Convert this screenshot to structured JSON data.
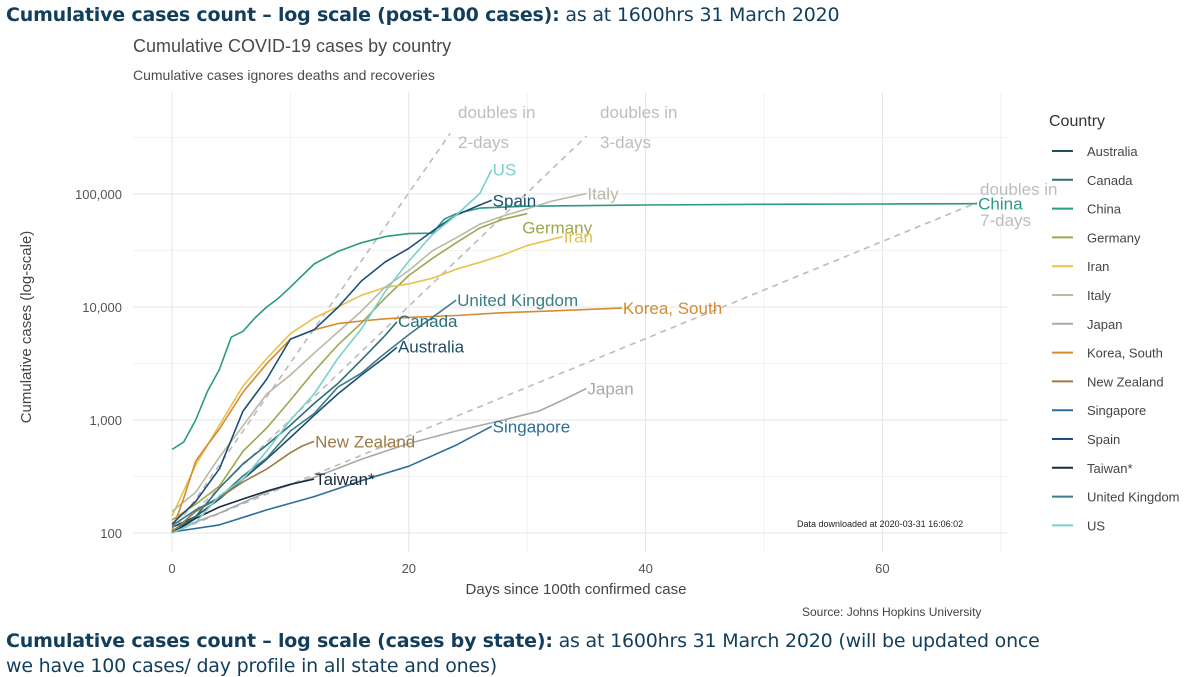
{
  "headings": {
    "top": {
      "bold": "Cumulative cases count – log scale (post-100 cases):",
      "rest": " as at 1600hrs 31 March 2020"
    },
    "bottom": {
      "bold": "Cumulative cases count – log scale (cases by state):",
      "rest": " as at 1600hrs 31 March 2020 (will be updated once"
    },
    "bottom_line2": "we have 100 cases/ day profile in all state and ones)"
  },
  "chart_data": {
    "type": "line",
    "title": "Cumulative COVID-19 cases by country",
    "subtitle": "Cumulative cases ignores deaths and recoveries",
    "xlabel": "Days since 100th confirmed case",
    "ylabel": "Cumulative cases (log-scale)",
    "xlim": [
      -1,
      71
    ],
    "ylim": [
      80,
      400000
    ],
    "yscale": "log",
    "x_ticks": [
      0,
      20,
      40,
      60
    ],
    "x_tick_labels": [
      "0",
      "20",
      "40",
      "60"
    ],
    "y_ticks": [
      100,
      1000,
      10000,
      100000
    ],
    "y_tick_labels": [
      "100",
      "1,000",
      "10,000",
      "100,000"
    ],
    "grid": true,
    "legend": {
      "title": "Country",
      "position": "right"
    },
    "note": "Data downloaded at 2020-03-31 16:06:02",
    "source": "Source: Johns Hopkins University",
    "reference_lines": [
      {
        "name": "doubles in 2-days",
        "label_line1": "doubles in",
        "label_line2": "2-days",
        "doubling_days": 2,
        "x_end": 24
      },
      {
        "name": "doubles in 3-days",
        "label_line1": "doubles in",
        "label_line2": "3-days",
        "doubling_days": 3,
        "x_end": 36
      },
      {
        "name": "doubles in 7-days",
        "label_line1": "doubles in",
        "label_line2": "7-days",
        "doubling_days": 7,
        "x_end": 68
      }
    ],
    "series": [
      {
        "name": "Australia",
        "color": "#1f4e6b",
        "label": "Australia",
        "x": [
          0,
          2,
          4,
          6,
          8,
          10,
          12,
          14,
          16,
          18,
          19
        ],
        "y": [
          112,
          140,
          200,
          300,
          450,
          700,
          1100,
          1700,
          2500,
          3600,
          4400
        ]
      },
      {
        "name": "Canada",
        "color": "#2a6f78",
        "label": "Canada",
        "x": [
          0,
          2,
          4,
          6,
          8,
          10,
          12,
          14,
          16,
          18,
          19
        ],
        "y": [
          103,
          140,
          250,
          410,
          600,
          900,
          1400,
          2100,
          3400,
          5600,
          7400
        ]
      },
      {
        "name": "China",
        "color": "#2a9a82",
        "label": "China",
        "x": [
          0,
          1,
          2,
          3,
          4,
          5,
          6,
          7,
          8,
          9,
          10,
          12,
          14,
          16,
          18,
          20,
          22,
          23,
          24,
          26,
          30,
          40,
          50,
          60,
          68
        ],
        "y": [
          548,
          640,
          1000,
          1800,
          2800,
          5400,
          6100,
          8000,
          10000,
          12000,
          15000,
          24000,
          31000,
          37000,
          42000,
          44600,
          45000,
          60000,
          67000,
          75000,
          78000,
          80000,
          81000,
          81500,
          82000
        ]
      },
      {
        "name": "Germany",
        "color": "#9aa84e",
        "label": "Germany",
        "x": [
          0,
          2,
          4,
          6,
          8,
          10,
          12,
          14,
          16,
          18,
          20,
          22,
          24,
          26,
          28,
          30
        ],
        "y": [
          130,
          180,
          260,
          530,
          850,
          1500,
          2700,
          4600,
          7200,
          12000,
          19000,
          27000,
          37000,
          50000,
          60000,
          67000
        ]
      },
      {
        "name": "Iran",
        "color": "#e8c14a",
        "label": "Iran",
        "x": [
          0,
          2,
          4,
          6,
          8,
          10,
          12,
          14,
          16,
          18,
          20,
          22,
          24,
          26,
          28,
          30,
          33
        ],
        "y": [
          141,
          400,
          900,
          2000,
          3500,
          5800,
          8000,
          10000,
          12700,
          14900,
          16000,
          18000,
          21600,
          24800,
          29000,
          35000,
          42000
        ]
      },
      {
        "name": "Italy",
        "color": "#b9b9a8",
        "label": "Italy",
        "x": [
          0,
          2,
          4,
          6,
          8,
          10,
          12,
          14,
          16,
          18,
          20,
          22,
          24,
          26,
          28,
          30,
          32,
          35
        ],
        "y": [
          155,
          229,
          470,
          890,
          1700,
          2500,
          3900,
          6000,
          9200,
          15000,
          21000,
          31500,
          41000,
          54000,
          64000,
          74000,
          86000,
          101000
        ]
      },
      {
        "name": "Japan",
        "color": "#a9a9a9",
        "label": "Japan",
        "x": [
          0,
          4,
          8,
          12,
          16,
          20,
          24,
          28,
          31,
          33,
          35
        ],
        "y": [
          105,
          150,
          230,
          310,
          450,
          620,
          800,
          1000,
          1200,
          1500,
          1900
        ]
      },
      {
        "name": "Korea, South",
        "color": "#d68a32",
        "label": "Korea, South",
        "x": [
          0,
          1,
          2,
          3,
          4,
          6,
          8,
          10,
          12,
          14,
          16,
          18,
          20,
          24,
          28,
          32,
          38
        ],
        "y": [
          104,
          204,
          433,
          602,
          833,
          1766,
          3150,
          5186,
          6284,
          7134,
          7513,
          7869,
          8086,
          8413,
          8897,
          9241,
          9786
        ]
      },
      {
        "name": "New Zealand",
        "color": "#9c7b45",
        "label": "New Zealand",
        "x": [
          0,
          2,
          4,
          6,
          8,
          10,
          11,
          12
        ],
        "y": [
          102,
          155,
          205,
          283,
          368,
          514,
          589,
          647
        ]
      },
      {
        "name": "Singapore",
        "color": "#2a6f9a",
        "label": "Singapore",
        "x": [
          0,
          4,
          8,
          12,
          16,
          20,
          24,
          27
        ],
        "y": [
          102,
          118,
          160,
          210,
          290,
          390,
          600,
          880
        ]
      },
      {
        "name": "Spain",
        "color": "#1d4f7a",
        "label": "Spain",
        "x": [
          0,
          2,
          4,
          6,
          8,
          10,
          12,
          14,
          16,
          18,
          20,
          22,
          24,
          26,
          27
        ],
        "y": [
          120,
          190,
          370,
          1200,
          2300,
          5200,
          6300,
          9900,
          17000,
          25000,
          33000,
          47000,
          65000,
          80000,
          88000
        ]
      },
      {
        "name": "Taiwan*",
        "color": "#1a2b3c",
        "label": "Taiwan*",
        "x": [
          0,
          2,
          4,
          6,
          8,
          10,
          12
        ],
        "y": [
          100,
          135,
          170,
          200,
          235,
          270,
          300
        ]
      },
      {
        "name": "United Kingdom",
        "color": "#3a7d8a",
        "label": "United Kingdom",
        "x": [
          0,
          2,
          4,
          6,
          8,
          10,
          12,
          14,
          16,
          18,
          20,
          22,
          24
        ],
        "y": [
          116,
          160,
          206,
          320,
          460,
          800,
          1140,
          1950,
          2600,
          3900,
          5700,
          8100,
          11500
        ]
      },
      {
        "name": "US",
        "color": "#7ad0cc",
        "label": "US",
        "x": [
          0,
          2,
          4,
          6,
          8,
          10,
          12,
          14,
          16,
          18,
          20,
          22,
          24,
          26,
          27
        ],
        "y": [
          100,
          124,
          213,
          300,
          530,
          1000,
          1700,
          3500,
          6400,
          13700,
          25500,
          43800,
          65000,
          101000,
          164000
        ]
      }
    ]
  }
}
